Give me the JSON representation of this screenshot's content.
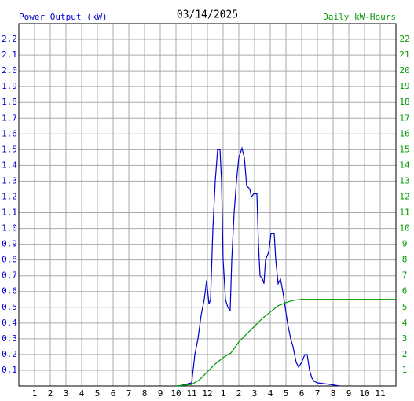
{
  "chart_data": {
    "type": "line",
    "title": "03/14/2025",
    "ylabel": "Power Output (kW)",
    "y2label": "Daily kW-Hours",
    "xlim": [
      0,
      24
    ],
    "ylim": [
      0,
      2.3
    ],
    "y2lim": [
      0,
      23
    ],
    "grid": true,
    "xticks": [
      1,
      2,
      3,
      4,
      5,
      6,
      7,
      8,
      9,
      10,
      11,
      12,
      {
        "value": 13,
        "label": "1"
      },
      {
        "value": 14,
        "label": "2"
      },
      {
        "value": 15,
        "label": "3"
      },
      {
        "value": 16,
        "label": "4"
      },
      {
        "value": 17,
        "label": "5"
      },
      {
        "value": 18,
        "label": "6"
      },
      {
        "value": 19,
        "label": "7"
      },
      {
        "value": 20,
        "label": "8"
      },
      {
        "value": 21,
        "label": "9"
      },
      {
        "value": 22,
        "label": "10"
      },
      {
        "value": 23,
        "label": "11"
      }
    ],
    "yticks": [
      0.1,
      0.2,
      0.3,
      0.4,
      0.5,
      0.6,
      0.7,
      0.8,
      0.9,
      {
        "value": 1,
        "label": "1.0"
      },
      1.1,
      1.2,
      1.3,
      1.4,
      1.5,
      1.6,
      1.7,
      1.8,
      1.9,
      {
        "value": 2,
        "label": "2.0"
      },
      2.1,
      2.2
    ],
    "y2ticks": [
      1,
      2,
      3,
      4,
      5,
      6,
      7,
      8,
      9,
      10,
      11,
      12,
      13,
      14,
      15,
      16,
      17,
      18,
      19,
      20,
      21,
      22
    ],
    "series": [
      {
        "name": "Power Output (kW)",
        "color": "#0000cc",
        "axis": "y",
        "x": [
          10,
          10.2,
          11,
          11.2,
          11.4,
          11.6,
          11.8,
          11.95,
          12.1,
          12.2,
          12.35,
          12.5,
          12.65,
          12.8,
          12.9,
          13,
          13.15,
          13.3,
          13.45,
          13.55,
          13.7,
          13.85,
          14,
          14.2,
          14.35,
          14.5,
          14.7,
          14.8,
          14.95,
          15.15,
          15.25,
          15.35,
          15.5,
          15.6,
          15.7,
          15.9,
          16.05,
          16.25,
          16.35,
          16.5,
          16.65,
          16.8,
          16.95,
          17.1,
          17.3,
          17.45,
          17.65,
          17.8,
          18,
          18.2,
          18.35,
          18.5,
          18.65,
          18.8,
          19,
          19.8,
          20.4
        ],
        "values": [
          0,
          0,
          0.02,
          0.2,
          0.3,
          0.45,
          0.55,
          0.67,
          0.52,
          0.55,
          1.0,
          1.3,
          1.5,
          1.5,
          1.3,
          0.8,
          0.55,
          0.5,
          0.48,
          0.8,
          1.1,
          1.3,
          1.45,
          1.51,
          1.45,
          1.27,
          1.25,
          1.2,
          1.22,
          1.22,
          0.9,
          0.7,
          0.68,
          0.65,
          0.8,
          0.85,
          0.97,
          0.97,
          0.8,
          0.65,
          0.68,
          0.6,
          0.5,
          0.4,
          0.3,
          0.25,
          0.15,
          0.12,
          0.15,
          0.2,
          0.2,
          0.1,
          0.05,
          0.03,
          0.02,
          0.01,
          0
        ]
      },
      {
        "name": "Daily kW-Hours",
        "color": "#009900",
        "axis": "y2",
        "x": [
          10,
          11,
          11.5,
          12,
          12.5,
          13,
          13.5,
          14,
          14.5,
          15,
          15.5,
          16,
          16.5,
          17,
          17.5,
          18,
          24
        ],
        "values": [
          0,
          0.1,
          0.4,
          0.9,
          1.4,
          1.8,
          2.1,
          2.8,
          3.3,
          3.8,
          4.3,
          4.7,
          5.1,
          5.3,
          5.45,
          5.5,
          5.5
        ]
      }
    ]
  }
}
